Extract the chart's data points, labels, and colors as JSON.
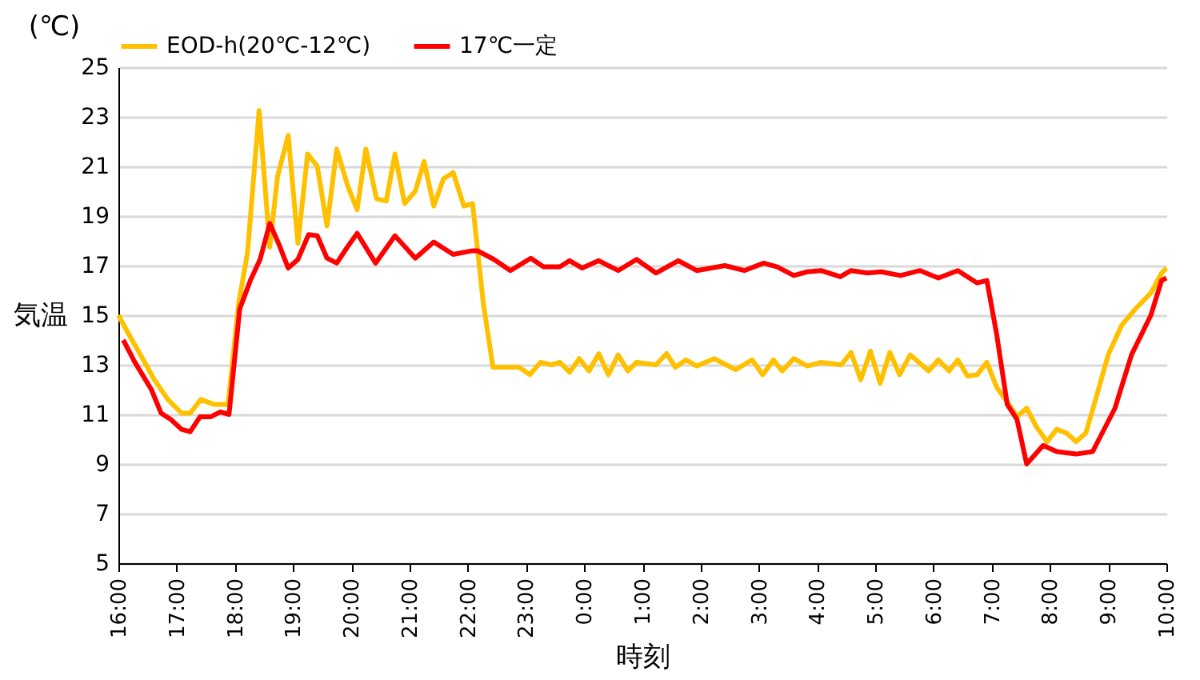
{
  "chart_data": {
    "type": "line",
    "xlabel": "時刻",
    "ylabel": "気温",
    "annotations": [
      "(℃)"
    ],
    "xlim": [
      "2000-01-01T16:00",
      "2000-01-02T10:00"
    ],
    "xticks": [
      {
        "value": "2000-01-01T16:00",
        "label": "16:00"
      },
      {
        "value": "2000-01-01T17:00",
        "label": "17:00"
      },
      {
        "value": "2000-01-01T18:00",
        "label": "18:00"
      },
      {
        "value": "2000-01-01T19:00",
        "label": "19:00"
      },
      {
        "value": "2000-01-01T20:00",
        "label": "20:00"
      },
      {
        "value": "2000-01-01T21:00",
        "label": "21:00"
      },
      {
        "value": "2000-01-01T22:00",
        "label": "22:00"
      },
      {
        "value": "2000-01-01T23:00",
        "label": "23:00"
      },
      {
        "value": "2000-01-02T00:00",
        "label": "0:00"
      },
      {
        "value": "2000-01-02T01:00",
        "label": "1:00"
      },
      {
        "value": "2000-01-02T02:00",
        "label": "2:00"
      },
      {
        "value": "2000-01-02T03:00",
        "label": "3:00"
      },
      {
        "value": "2000-01-02T04:00",
        "label": "4:00"
      },
      {
        "value": "2000-01-02T05:00",
        "label": "5:00"
      },
      {
        "value": "2000-01-02T06:00",
        "label": "6:00"
      },
      {
        "value": "2000-01-02T07:00",
        "label": "7:00"
      },
      {
        "value": "2000-01-02T08:00",
        "label": "8:00"
      },
      {
        "value": "2000-01-02T09:00",
        "label": "9:00"
      },
      {
        "value": "2000-01-02T10:00",
        "label": "10:00"
      }
    ],
    "ylim": [
      5,
      25
    ],
    "yticks": [
      5,
      7,
      9,
      11,
      13,
      15,
      17,
      19,
      21,
      23,
      25
    ],
    "grid": "y",
    "legend": "top",
    "marker": "none",
    "line_style": "solid",
    "series": [
      {
        "name": "EOD-h(20℃-12℃)",
        "color": "#ffc000",
        "x": [
          "2000-01-01T16:00",
          "2000-01-01T16:14",
          "2000-01-01T16:25",
          "2000-01-01T16:37",
          "2000-01-01T16:51",
          "2000-01-01T17:05",
          "2000-01-01T17:14",
          "2000-01-01T17:25",
          "2000-01-01T17:39",
          "2000-01-01T17:53",
          "2000-01-01T18:04",
          "2000-01-01T18:13",
          "2000-01-01T18:25",
          "2000-01-01T18:36",
          "2000-01-01T18:44",
          "2000-01-01T18:55",
          "2000-01-01T19:05",
          "2000-01-01T19:15",
          "2000-01-01T19:25",
          "2000-01-01T19:35",
          "2000-01-01T19:45",
          "2000-01-01T19:56",
          "2000-01-01T20:06",
          "2000-01-01T20:15",
          "2000-01-01T20:26",
          "2000-01-01T20:36",
          "2000-01-01T20:45",
          "2000-01-01T20:55",
          "2000-01-01T21:06",
          "2000-01-01T21:15",
          "2000-01-01T21:25",
          "2000-01-01T21:35",
          "2000-01-01T21:45",
          "2000-01-01T21:56",
          "2000-01-01T22:05",
          "2000-01-01T22:16",
          "2000-01-01T22:26",
          "2000-01-01T22:53",
          "2000-01-01T23:04",
          "2000-01-01T23:15",
          "2000-01-01T23:26",
          "2000-01-01T23:35",
          "2000-01-01T23:45",
          "2000-01-01T23:55",
          "2000-01-02T00:05",
          "2000-01-02T00:15",
          "2000-01-02T00:25",
          "2000-01-02T00:35",
          "2000-01-02T00:45",
          "2000-01-02T00:54",
          "2000-01-02T01:14",
          "2000-01-02T01:25",
          "2000-01-02T01:34",
          "2000-01-02T01:45",
          "2000-01-02T01:56",
          "2000-01-02T02:14",
          "2000-01-02T02:36",
          "2000-01-02T02:53",
          "2000-01-02T03:04",
          "2000-01-02T03:15",
          "2000-01-02T03:24",
          "2000-01-02T03:36",
          "2000-01-02T03:50",
          "2000-01-02T04:04",
          "2000-01-02T04:25",
          "2000-01-02T04:35",
          "2000-01-02T04:45",
          "2000-01-02T04:55",
          "2000-01-02T05:05",
          "2000-01-02T05:15",
          "2000-01-02T05:25",
          "2000-01-02T05:36",
          "2000-01-02T05:55",
          "2000-01-02T06:05",
          "2000-01-02T06:16",
          "2000-01-02T06:25",
          "2000-01-02T06:35",
          "2000-01-02T06:45",
          "2000-01-02T06:55",
          "2000-01-02T07:05",
          "2000-01-02T07:16",
          "2000-01-02T07:26",
          "2000-01-02T07:36",
          "2000-01-02T07:46",
          "2000-01-02T07:57",
          "2000-01-02T08:07",
          "2000-01-02T08:17",
          "2000-01-02T08:27",
          "2000-01-02T08:37",
          "2000-01-02T08:47",
          "2000-01-02T09:00",
          "2000-01-02T09:14",
          "2000-01-02T09:28",
          "2000-01-02T09:44",
          "2000-01-02T09:55",
          "2000-01-02T10:00"
        ],
        "values": [
          15.0,
          14.0,
          13.25,
          12.4,
          11.6,
          11.05,
          11.05,
          11.6,
          11.4,
          11.4,
          15.5,
          17.5,
          23.25,
          17.75,
          20.6,
          22.25,
          17.9,
          21.5,
          21.0,
          18.6,
          21.7,
          20.25,
          19.25,
          21.7,
          19.7,
          19.6,
          21.5,
          19.5,
          20.0,
          21.2,
          19.4,
          20.5,
          20.75,
          19.4,
          19.5,
          15.5,
          12.9,
          12.9,
          12.6,
          13.1,
          13.0,
          13.1,
          12.7,
          13.25,
          12.75,
          13.45,
          12.6,
          13.4,
          12.75,
          13.1,
          13.0,
          13.45,
          12.9,
          13.2,
          12.95,
          13.25,
          12.8,
          13.2,
          12.6,
          13.2,
          12.75,
          13.25,
          12.95,
          13.1,
          13.0,
          13.5,
          12.4,
          13.55,
          12.25,
          13.5,
          12.6,
          13.4,
          12.75,
          13.2,
          12.75,
          13.2,
          12.55,
          12.6,
          13.1,
          12.1,
          11.5,
          10.9,
          11.25,
          10.5,
          9.9,
          10.4,
          10.25,
          9.9,
          10.25,
          11.6,
          13.4,
          14.6,
          15.25,
          15.9,
          16.7,
          16.9
        ]
      },
      {
        "name": "17℃一定",
        "color": "#ff0000",
        "x": [
          "2000-01-01T16:05",
          "2000-01-01T16:17",
          "2000-01-01T16:34",
          "2000-01-01T16:44",
          "2000-01-01T16:54",
          "2000-01-01T17:05",
          "2000-01-01T17:14",
          "2000-01-01T17:24",
          "2000-01-01T17:35",
          "2000-01-01T17:45",
          "2000-01-01T17:54",
          "2000-01-01T18:05",
          "2000-01-01T18:16",
          "2000-01-01T18:26",
          "2000-01-01T18:36",
          "2000-01-01T18:45",
          "2000-01-01T18:55",
          "2000-01-01T19:05",
          "2000-01-01T19:16",
          "2000-01-01T19:25",
          "2000-01-01T19:35",
          "2000-01-01T19:45",
          "2000-01-01T19:56",
          "2000-01-01T20:06",
          "2000-01-01T20:25",
          "2000-01-01T20:45",
          "2000-01-01T21:06",
          "2000-01-01T21:25",
          "2000-01-01T21:45",
          "2000-01-01T22:05",
          "2000-01-01T22:10",
          "2000-01-01T22:27",
          "2000-01-01T22:44",
          "2000-01-01T23:05",
          "2000-01-01T23:18",
          "2000-01-01T23:35",
          "2000-01-01T23:45",
          "2000-01-01T23:58",
          "2000-01-02T00:15",
          "2000-01-02T00:35",
          "2000-01-02T00:54",
          "2000-01-02T01:14",
          "2000-01-02T01:37",
          "2000-01-02T01:56",
          "2000-01-02T02:25",
          "2000-01-02T02:45",
          "2000-01-02T03:05",
          "2000-01-02T03:19",
          "2000-01-02T03:36",
          "2000-01-02T03:50",
          "2000-01-02T04:04",
          "2000-01-02T04:24",
          "2000-01-02T04:35",
          "2000-01-02T04:52",
          "2000-01-02T05:06",
          "2000-01-02T05:26",
          "2000-01-02T05:46",
          "2000-01-02T06:05",
          "2000-01-02T06:25",
          "2000-01-02T06:45",
          "2000-01-02T06:55",
          "2000-01-02T07:05",
          "2000-01-02T07:16",
          "2000-01-02T07:26",
          "2000-01-02T07:36",
          "2000-01-02T07:53",
          "2000-01-02T08:07",
          "2000-01-02T08:27",
          "2000-01-02T08:44",
          "2000-01-02T09:07",
          "2000-01-02T09:24",
          "2000-01-02T09:44",
          "2000-01-02T09:55",
          "2000-01-02T10:00"
        ],
        "values": [
          14.0,
          13.1,
          12.0,
          11.05,
          10.8,
          10.4,
          10.3,
          10.9,
          10.9,
          11.1,
          11.0,
          15.25,
          16.4,
          17.25,
          18.7,
          17.9,
          16.9,
          17.25,
          18.25,
          18.2,
          17.3,
          17.1,
          17.75,
          18.3,
          17.1,
          18.2,
          17.3,
          17.95,
          17.45,
          17.6,
          17.6,
          17.25,
          16.8,
          17.3,
          16.95,
          16.95,
          17.2,
          16.9,
          17.2,
          16.8,
          17.25,
          16.7,
          17.2,
          16.8,
          17.0,
          16.8,
          17.1,
          16.95,
          16.6,
          16.75,
          16.8,
          16.55,
          16.8,
          16.7,
          16.75,
          16.6,
          16.8,
          16.5,
          16.8,
          16.3,
          16.4,
          14.25,
          11.4,
          10.8,
          9.0,
          9.75,
          9.5,
          9.4,
          9.5,
          11.25,
          13.4,
          15.0,
          16.4,
          16.5
        ]
      }
    ]
  }
}
